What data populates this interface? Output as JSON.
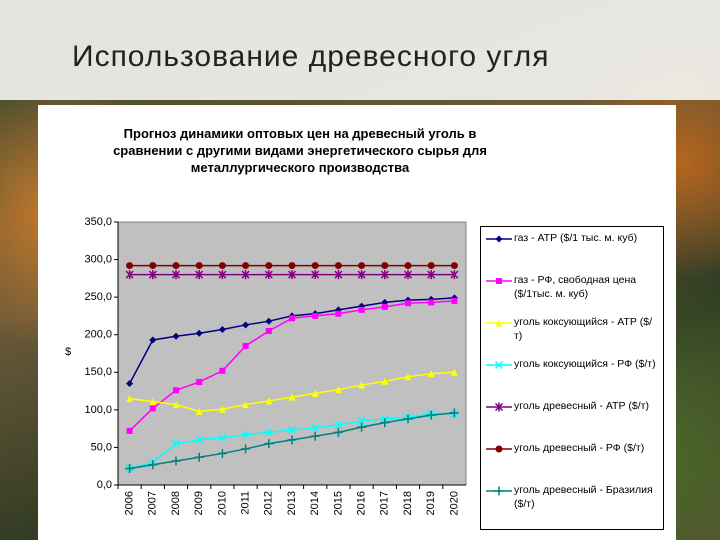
{
  "slide": {
    "title": "Использование древесного угля"
  },
  "chart_data": {
    "type": "line",
    "title": "Прогноз динамики оптовых цен на древесный уголь в сравнении с другими видами энергетического сырья для металлургического производства",
    "y_label": "$",
    "categories": [
      "2006",
      "2007",
      "2008",
      "2009",
      "2010",
      "2011",
      "2012",
      "2013",
      "2014",
      "2015",
      "2016",
      "2017",
      "2018",
      "2019",
      "2020"
    ],
    "ylim": [
      0,
      350
    ],
    "yticks": [
      {
        "value": 0,
        "label": "0,0"
      },
      {
        "value": 50,
        "label": "50,0"
      },
      {
        "value": 100,
        "label": "100,0"
      },
      {
        "value": 150,
        "label": "150,0"
      },
      {
        "value": 200,
        "label": "200,0"
      },
      {
        "value": 250,
        "label": "250,0"
      },
      {
        "value": 300,
        "label": "300,0"
      },
      {
        "value": 350,
        "label": "350,0"
      }
    ],
    "grid": false,
    "series": [
      {
        "name": "газ - АТР ($/1 тыс. м. куб)",
        "color": "#000080",
        "marker": "diamond",
        "values": [
          135,
          193,
          198,
          202,
          207,
          213,
          218,
          225,
          228,
          233,
          238,
          243,
          246,
          247,
          249
        ]
      },
      {
        "name": "газ - РФ, свободная цена ($/1тыс. м. куб)",
        "color": "#ff00ff",
        "marker": "square",
        "values": [
          72,
          102,
          126,
          137,
          152,
          185,
          205,
          222,
          225,
          228,
          233,
          237,
          242,
          243,
          245
        ]
      },
      {
        "name": "уголь коксующийся - АТР ($/т)",
        "color": "#ffff00",
        "marker": "triangle",
        "values": [
          115,
          111,
          107,
          98,
          101,
          107,
          112,
          117,
          122,
          127,
          133,
          138,
          144,
          148,
          150
        ]
      },
      {
        "name": "уголь коксующийся - РФ ($/т)",
        "color": "#00ffff",
        "marker": "x",
        "values": [
          22,
          30,
          55,
          60,
          63,
          67,
          70,
          73,
          76,
          80,
          85,
          88,
          90,
          95,
          95
        ]
      },
      {
        "name": "уголь древесный - АТР ($/т)",
        "color": "#800080",
        "marker": "asterisk",
        "values": [
          280,
          280,
          280,
          280,
          280,
          280,
          280,
          280,
          280,
          280,
          280,
          280,
          280,
          280,
          280
        ]
      },
      {
        "name": "уголь древесный - РФ ($/т)",
        "color": "#800000",
        "marker": "circle",
        "values": [
          292,
          292,
          292,
          292,
          292,
          292,
          292,
          292,
          292,
          292,
          292,
          292,
          292,
          292,
          292
        ]
      },
      {
        "name": "уголь древесный - Бразилия ($/т)",
        "color": "#008080",
        "marker": "plus",
        "values": [
          22,
          27,
          32,
          37,
          42,
          48,
          55,
          60,
          65,
          70,
          77,
          83,
          88,
          93,
          96
        ]
      }
    ]
  }
}
